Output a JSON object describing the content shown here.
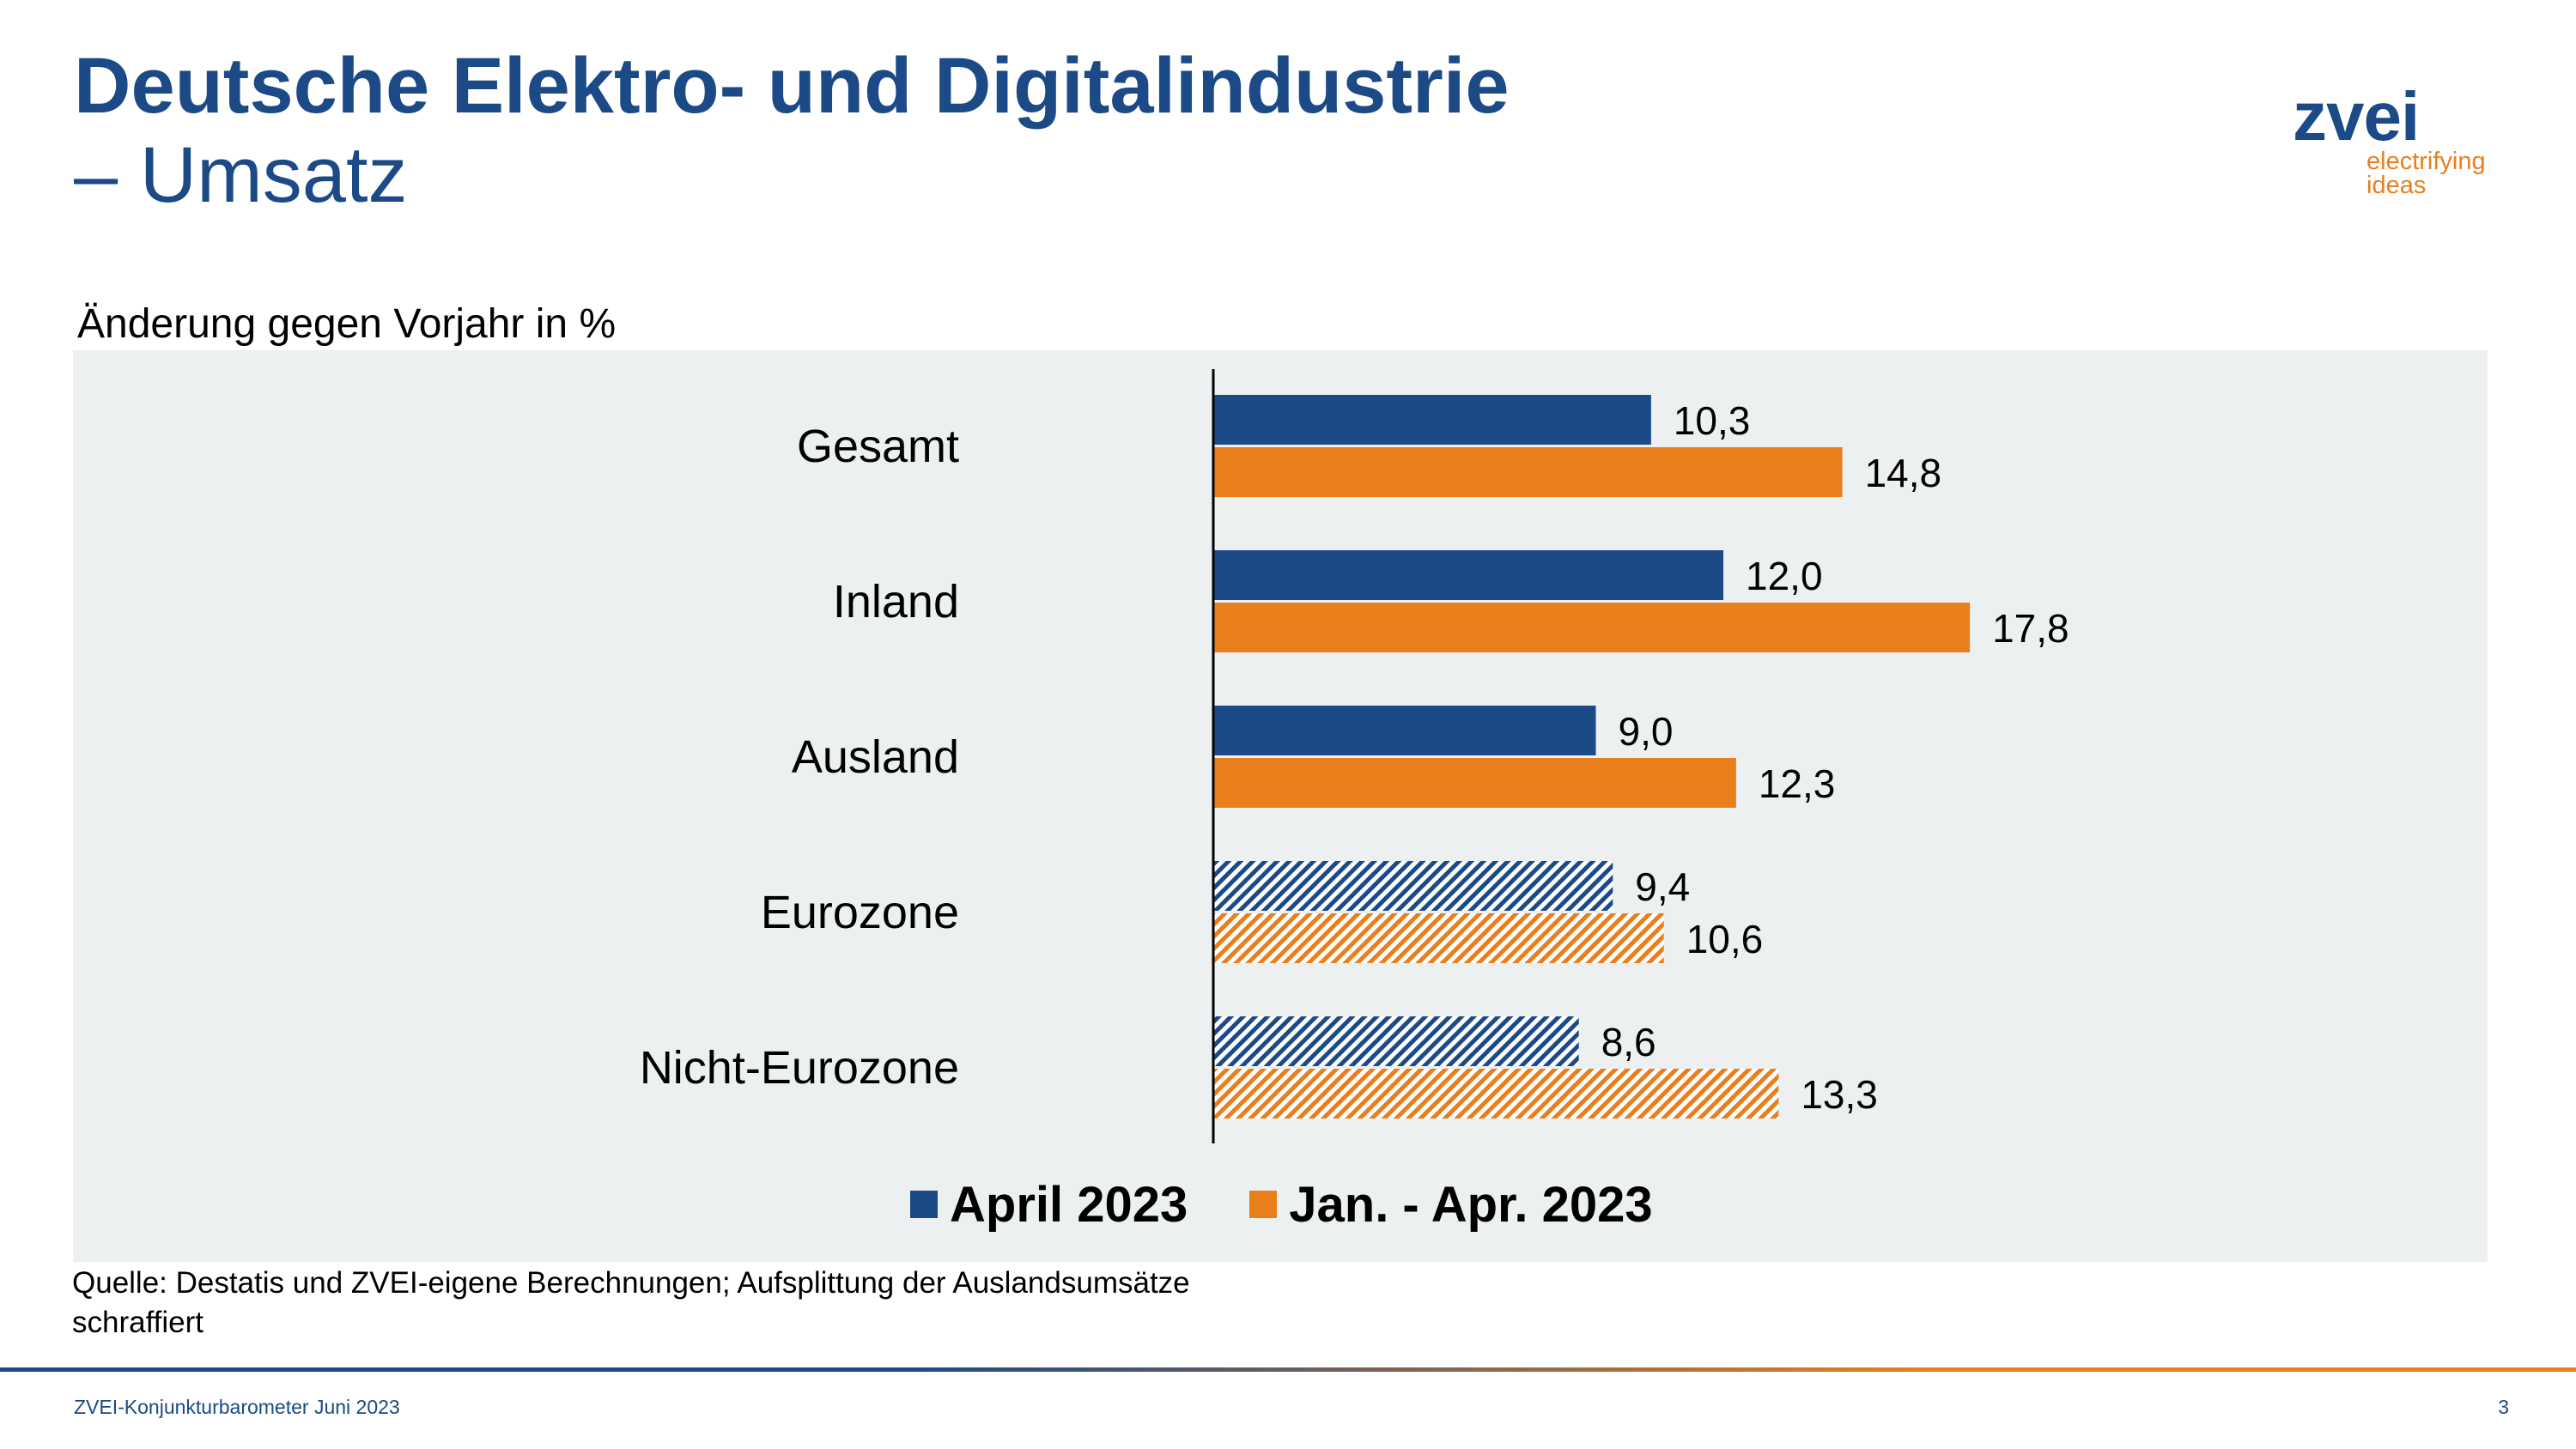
{
  "header": {
    "title": "Deutsche Elektro- und Digitalindustrie",
    "subtitle": "– Umsatz"
  },
  "logo": {
    "word": "zvei",
    "tagline": "electrifying ideas"
  },
  "colors": {
    "blue": "#1b4a87",
    "orange": "#e87f1c",
    "panel": "#edf0f1"
  },
  "chart_data": {
    "type": "bar",
    "orientation": "horizontal",
    "unit_label": "Änderung gegen Vorjahr in %",
    "categories": [
      "Gesamt",
      "Inland",
      "Ausland",
      "Eurozone",
      "Nicht-Eurozone"
    ],
    "hatched_categories": [
      "Eurozone",
      "Nicht-Eurozone"
    ],
    "series": [
      {
        "name": "April 2023",
        "color": "#1b4a87",
        "values": [
          10.3,
          12.0,
          9.0,
          9.4,
          8.6
        ],
        "labels": [
          "10,3",
          "12,0",
          "9,0",
          "9,4",
          "8,6"
        ]
      },
      {
        "name": "Jan. - Apr. 2023",
        "color": "#e87f1c",
        "values": [
          14.8,
          17.8,
          12.3,
          10.6,
          13.3
        ],
        "labels": [
          "14,8",
          "17,8",
          "12,3",
          "10,6",
          "13,3"
        ]
      }
    ],
    "xlim": [
      0,
      20
    ],
    "grid": false,
    "legend_position": "bottom"
  },
  "source_note": "Quelle: Destatis und ZVEI-eigene Berechnungen; Aufsplittung der Auslandsumsätze schraffiert",
  "footer": {
    "text": "ZVEI-Konjunkturbarometer Juni 2023",
    "page": "3"
  }
}
